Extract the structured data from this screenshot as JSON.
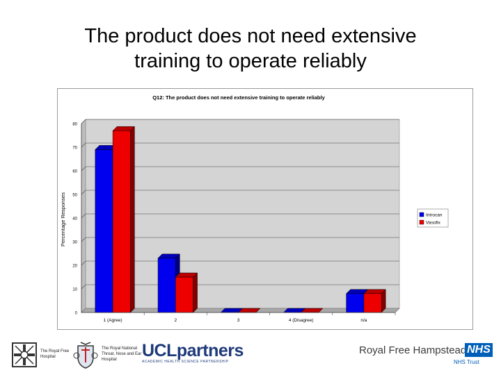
{
  "slide": {
    "title_line1": "The product does not need extensive",
    "title_line2": "training to operate reliably"
  },
  "chart_data": {
    "type": "bar",
    "title": "Q12: The product does not need extensive training to operate reliably",
    "ylabel": "Percentage Responses",
    "xlabel": "",
    "categories": [
      "1 (Agree)",
      "2",
      "3",
      "4 (Disagree)",
      "n/a"
    ],
    "series": [
      {
        "name": "Introcan",
        "values": [
          69,
          23,
          0,
          0,
          8
        ],
        "color": "#0000ee"
      },
      {
        "name": "Vasofix",
        "values": [
          77,
          15,
          0,
          0,
          8
        ],
        "color": "#ee0000"
      }
    ],
    "ylim": [
      0,
      80
    ],
    "yticks": [
      0,
      10,
      20,
      30,
      40,
      50,
      60,
      70,
      80
    ],
    "grid": true,
    "legend_position": "right",
    "style": "3d-bar"
  },
  "footer": {
    "royal_free_hospital": "The Royal Free Hospital",
    "rnt_hospital": "The Royal National Throat, Nose and Ear Hospital",
    "ucl_partners": "UCLpartners",
    "ucl_partners_sub": "ACADEMIC HEALTH SCIENCE PARTNERSHIP",
    "royal_free_hampstead": "Royal Free Hampstead",
    "nhs": "NHS",
    "nhs_trust": "NHS Trust"
  }
}
